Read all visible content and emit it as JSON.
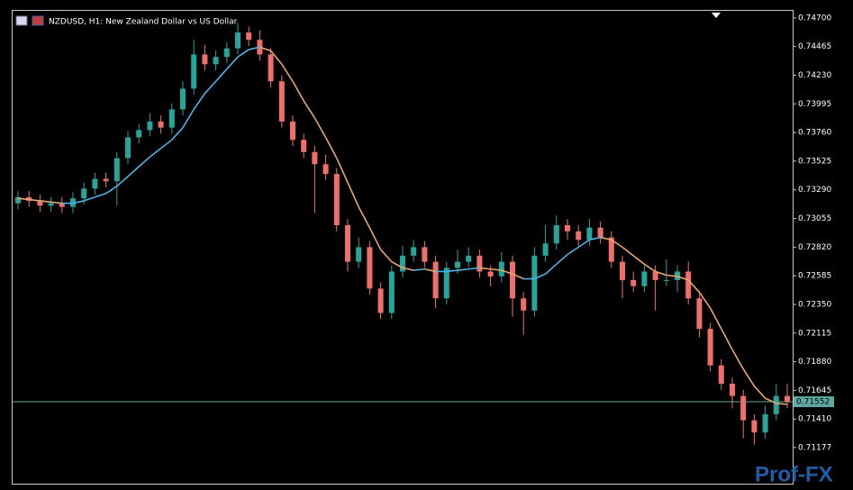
{
  "chart_data": {
    "type": "candlestick",
    "title": "NZDUSD, H1:  New Zealand Dollar vs US Dollar",
    "watermark": "Prof-FX",
    "ylim": [
      0.7088,
      0.74758
    ],
    "yticks": [
      {
        "value": 0.747,
        "label": "0.74700"
      },
      {
        "value": 0.74465,
        "label": "0.74465"
      },
      {
        "value": 0.7423,
        "label": "0.74230"
      },
      {
        "value": 0.73995,
        "label": "0.73995"
      },
      {
        "value": 0.7376,
        "label": "0.73760"
      },
      {
        "value": 0.73525,
        "label": "0.73525"
      },
      {
        "value": 0.7329,
        "label": "0.73290"
      },
      {
        "value": 0.73055,
        "label": "0.73055"
      },
      {
        "value": 0.7282,
        "label": "0.72820"
      },
      {
        "value": 0.72585,
        "label": "0.72585"
      },
      {
        "value": 0.7235,
        "label": "0.72350"
      },
      {
        "value": 0.72115,
        "label": "0.72115"
      },
      {
        "value": 0.7188,
        "label": "0.71880"
      },
      {
        "value": 0.71645,
        "label": "0.71645"
      },
      {
        "value": 0.7141,
        "label": "0.71410"
      },
      {
        "value": 0.71177,
        "label": "0.71177"
      }
    ],
    "current_price": 0.71552,
    "bull_color": "#26a69a",
    "bear_color": "#ef6f6c",
    "ma_up_color": "#4fb3e8",
    "ma_down_color": "#e8a76f",
    "price_line_color": "#5fa8a0",
    "open": [
      0.7318,
      0.7323,
      0.732,
      0.7316,
      0.7318,
      0.7315,
      0.7322,
      0.733,
      0.7338,
      0.7336,
      0.7355,
      0.7372,
      0.7378,
      0.7385,
      0.738,
      0.7395,
      0.7412,
      0.744,
      0.7432,
      0.7438,
      0.7445,
      0.7458,
      0.7452,
      0.744,
      0.7418,
      0.7385,
      0.737,
      0.736,
      0.735,
      0.7342,
      0.73,
      0.727,
      0.7282,
      0.7248,
      0.7228,
      0.7262,
      0.7275,
      0.7282,
      0.727,
      0.724,
      0.7265,
      0.727,
      0.7275,
      0.7262,
      0.7258,
      0.727,
      0.724,
      0.723,
      0.7275,
      0.7285,
      0.73,
      0.7295,
      0.7288,
      0.7298,
      0.729,
      0.727,
      0.7255,
      0.725,
      0.7262,
      0.7255,
      0.7255,
      0.7262,
      0.724,
      0.7215,
      0.7185,
      0.717,
      0.716,
      0.714,
      0.713,
      0.7145,
      0.716
    ],
    "high": [
      0.7328,
      0.7328,
      0.7325,
      0.7323,
      0.7323,
      0.7327,
      0.7335,
      0.7343,
      0.7343,
      0.736,
      0.7377,
      0.7383,
      0.7392,
      0.739,
      0.74,
      0.7418,
      0.7452,
      0.7448,
      0.7443,
      0.745,
      0.7466,
      0.7463,
      0.746,
      0.7445,
      0.7423,
      0.739,
      0.7375,
      0.7365,
      0.7358,
      0.7347,
      0.7305,
      0.729,
      0.7287,
      0.7253,
      0.7267,
      0.7283,
      0.7288,
      0.7287,
      0.7275,
      0.727,
      0.728,
      0.7282,
      0.728,
      0.7267,
      0.7278,
      0.7275,
      0.7245,
      0.7282,
      0.73,
      0.7308,
      0.7305,
      0.73,
      0.7305,
      0.7303,
      0.7295,
      0.7275,
      0.7262,
      0.7267,
      0.7267,
      0.7272,
      0.7267,
      0.727,
      0.7245,
      0.722,
      0.719,
      0.7175,
      0.7165,
      0.7145,
      0.7152,
      0.717,
      0.717
    ],
    "low": [
      0.7313,
      0.7315,
      0.7311,
      0.7311,
      0.731,
      0.731,
      0.7317,
      0.7325,
      0.7331,
      0.7316,
      0.735,
      0.7367,
      0.7373,
      0.7375,
      0.7375,
      0.739,
      0.7407,
      0.7427,
      0.7427,
      0.7433,
      0.744,
      0.7447,
      0.7435,
      0.7413,
      0.738,
      0.7365,
      0.7355,
      0.731,
      0.7337,
      0.7295,
      0.7262,
      0.7265,
      0.7243,
      0.7223,
      0.7223,
      0.7257,
      0.727,
      0.7265,
      0.7232,
      0.7235,
      0.726,
      0.7265,
      0.7257,
      0.725,
      0.7253,
      0.7225,
      0.721,
      0.7225,
      0.727,
      0.728,
      0.7288,
      0.7283,
      0.7283,
      0.7285,
      0.7265,
      0.724,
      0.7245,
      0.7245,
      0.723,
      0.725,
      0.7245,
      0.7235,
      0.7208,
      0.718,
      0.7165,
      0.715,
      0.7125,
      0.712,
      0.7125,
      0.714,
      0.715
    ],
    "close": [
      0.7323,
      0.732,
      0.7316,
      0.7318,
      0.7315,
      0.7322,
      0.733,
      0.7338,
      0.7336,
      0.7355,
      0.7372,
      0.7378,
      0.7385,
      0.738,
      0.7395,
      0.7412,
      0.744,
      0.7432,
      0.7438,
      0.7445,
      0.7458,
      0.7452,
      0.744,
      0.7418,
      0.7385,
      0.737,
      0.736,
      0.735,
      0.7342,
      0.73,
      0.727,
      0.7282,
      0.7248,
      0.7228,
      0.7262,
      0.7275,
      0.7282,
      0.727,
      0.724,
      0.7265,
      0.727,
      0.7275,
      0.7262,
      0.7258,
      0.727,
      0.724,
      0.723,
      0.7275,
      0.7285,
      0.73,
      0.7295,
      0.7288,
      0.7298,
      0.729,
      0.727,
      0.7255,
      0.725,
      0.7262,
      0.7255,
      0.7255,
      0.7262,
      0.724,
      0.7215,
      0.7185,
      0.717,
      0.716,
      0.714,
      0.713,
      0.7145,
      0.716,
      0.71552
    ],
    "ma": [
      0.7322,
      0.7321,
      0.732,
      0.7319,
      0.7318,
      0.7318,
      0.732,
      0.7323,
      0.7326,
      0.7332,
      0.734,
      0.7348,
      0.7356,
      0.7363,
      0.737,
      0.738,
      0.7395,
      0.7408,
      0.7418,
      0.7428,
      0.7438,
      0.7444,
      0.7446,
      0.7443,
      0.7432,
      0.7418,
      0.7402,
      0.7388,
      0.7372,
      0.7355,
      0.7335,
      0.7315,
      0.7298,
      0.728,
      0.727,
      0.7265,
      0.7263,
      0.7264,
      0.7262,
      0.7262,
      0.7263,
      0.7264,
      0.7265,
      0.7264,
      0.7263,
      0.726,
      0.7256,
      0.7256,
      0.726,
      0.7268,
      0.7276,
      0.7282,
      0.7288,
      0.729,
      0.7288,
      0.7282,
      0.7275,
      0.7268,
      0.7262,
      0.7259,
      0.7258,
      0.7255,
      0.7245,
      0.7232,
      0.7215,
      0.7198,
      0.7182,
      0.7168,
      0.7158,
      0.7154,
      0.7153
    ]
  }
}
